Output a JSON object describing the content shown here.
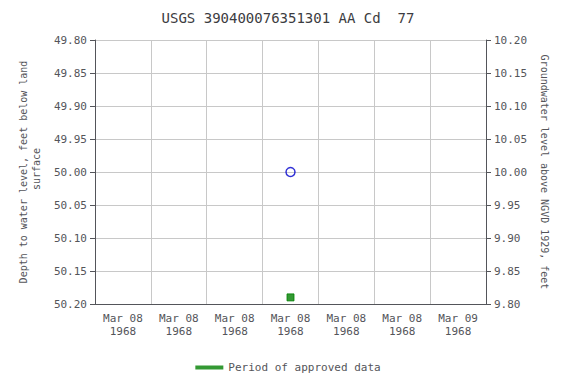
{
  "chart_data": {
    "type": "scatter",
    "title": "USGS 390400076351301 AA Cd  77",
    "ylabel": "Depth to water level, feet below land\n surface",
    "y2label": "Groundwater level above NGVD 1929, feet",
    "categories": [
      "Mar 08\n1968",
      "Mar 08\n1968",
      "Mar 08\n1968",
      "Mar 08\n1968",
      "Mar 08\n1968",
      "Mar 08\n1968",
      "Mar 09\n1968"
    ],
    "ylim": [
      50.2,
      49.8
    ],
    "yticks": [
      {
        "value": 49.8,
        "label": "49.80"
      },
      {
        "value": 49.85,
        "label": "49.85"
      },
      {
        "value": 49.9,
        "label": "49.90"
      },
      {
        "value": 49.95,
        "label": "49.95"
      },
      {
        "value": 50.0,
        "label": "50.00"
      },
      {
        "value": 50.05,
        "label": "50.05"
      },
      {
        "value": 50.1,
        "label": "50.10"
      },
      {
        "value": 50.15,
        "label": "50.15"
      },
      {
        "value": 50.2,
        "label": "50.20"
      }
    ],
    "y2lim": [
      9.8,
      10.2
    ],
    "y2ticks": [
      {
        "value": 10.2,
        "label": "10.20"
      },
      {
        "value": 10.15,
        "label": "10.15"
      },
      {
        "value": 10.1,
        "label": "10.10"
      },
      {
        "value": 10.05,
        "label": "10.05"
      },
      {
        "value": 10.0,
        "label": "10.00"
      },
      {
        "value": 9.95,
        "label": "9.95"
      },
      {
        "value": 9.9,
        "label": "9.90"
      },
      {
        "value": 9.85,
        "label": "9.85"
      },
      {
        "value": 9.8,
        "label": "9.80"
      }
    ],
    "grid": true,
    "legend": "bottom",
    "series": [
      {
        "color": "#0000cc",
        "marker": "open_circle",
        "values": [
          null,
          null,
          null,
          50.0,
          null,
          null,
          null
        ]
      },
      {
        "name": "Period of approved data",
        "color": "#008000",
        "marker": "square",
        "values": [
          null,
          null,
          null,
          50.19,
          null,
          null,
          null
        ]
      }
    ]
  }
}
